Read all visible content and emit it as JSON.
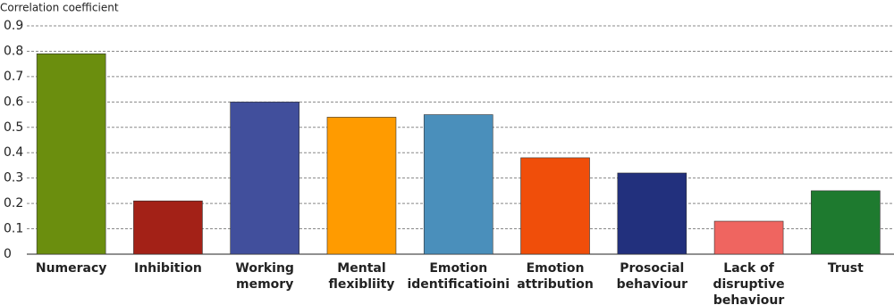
{
  "chart_data": {
    "type": "bar",
    "y_label": "Correlation coefficient",
    "categories": [
      "Numeracy",
      "Inhibition",
      "Working\nmemory",
      "Mental\nflexibliity",
      "Emotion\nidentificatioini",
      "Emotion\nattribution",
      "Prosocial\nbehaviour",
      "Lack of\ndisruptive\nbehaviour",
      "Trust"
    ],
    "values": [
      0.79,
      0.21,
      0.6,
      0.54,
      0.55,
      0.38,
      0.32,
      0.13,
      0.25
    ],
    "colors": [
      "#6b8e0e",
      "#a32117",
      "#414f9c",
      "#ff9b00",
      "#4a8fbb",
      "#f04e0a",
      "#22307d",
      "#ef6560",
      "#1e7a2f"
    ],
    "ylim": [
      0,
      0.9
    ],
    "yticks": [
      0,
      0.1,
      0.2,
      0.3,
      0.4,
      0.5,
      0.6,
      0.7,
      0.8,
      0.9
    ],
    "grid": true
  }
}
